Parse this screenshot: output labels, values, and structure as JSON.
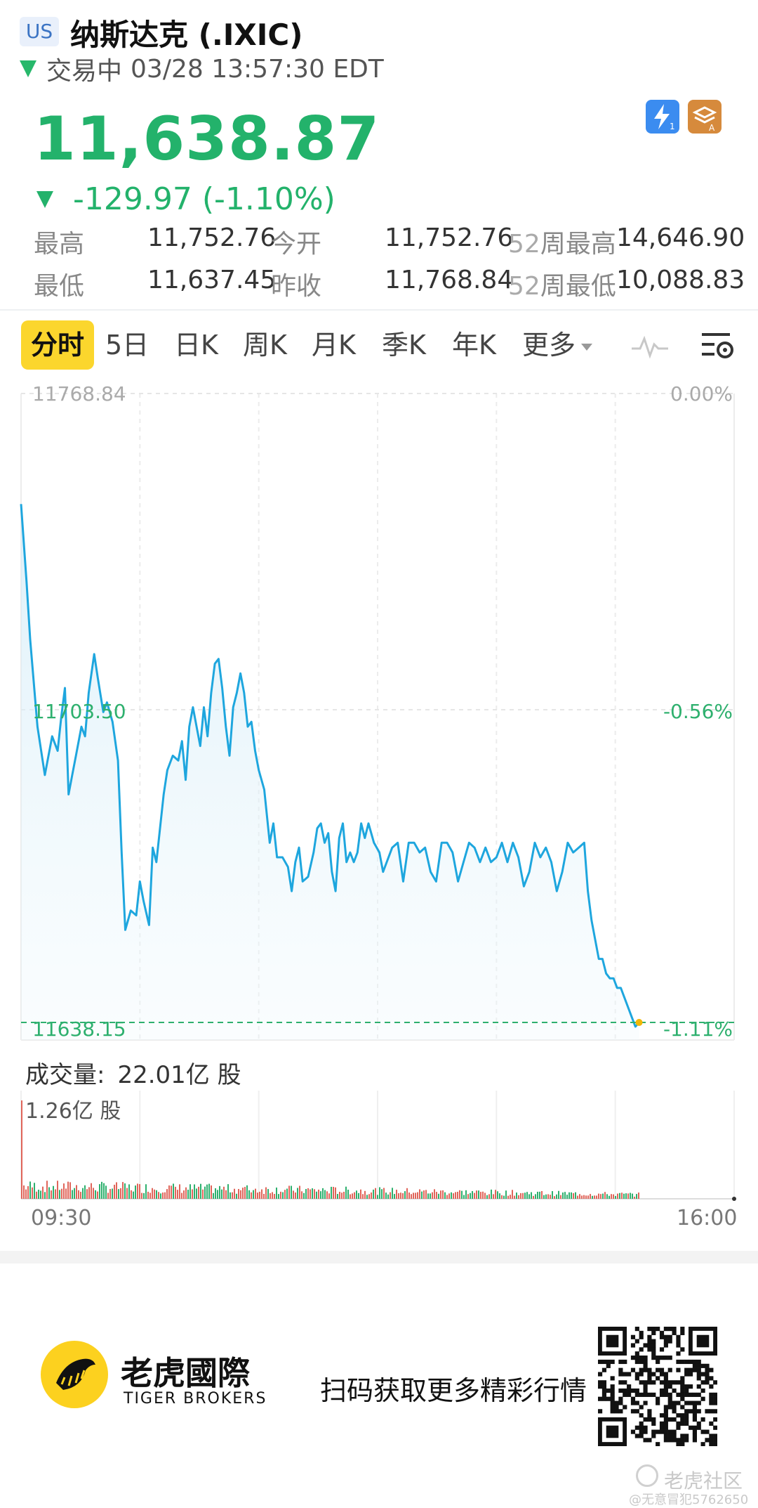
{
  "header": {
    "market_badge": "US",
    "title": "纳斯达克 (.IXIC)",
    "status": "交易中",
    "datetime": "03/28 13:57:30 EDT",
    "price": "11,638.87",
    "change": "-129.97",
    "change_pct": "(-1.10%)",
    "icons": [
      "lightning-level1-icon",
      "layers-a-icon"
    ],
    "colors": {
      "down": "#23b26b",
      "accent": "#fbd62d",
      "line": "#1ea6de"
    }
  },
  "stats": {
    "high_label": "最高",
    "high": "11,752.76",
    "open_label": "今开",
    "open": "11,752.76",
    "wk52_high_prefix": "52",
    "wk52_high_label": "周最高",
    "wk52_high": "14,646.90",
    "low_label": "最低",
    "low": "11,637.45",
    "prev_label": "昨收",
    "prev": "11,768.84",
    "wk52_low_prefix": "52",
    "wk52_low_label": "周最低",
    "wk52_low": "10,088.83"
  },
  "tabs": {
    "items": [
      "分时",
      "5日",
      "日K",
      "周K",
      "月K",
      "季K",
      "年K",
      "更多"
    ],
    "active": "分时",
    "icons": [
      "pulse-line-icon",
      "chart-settings-icon"
    ]
  },
  "chart_data": {
    "type": "line",
    "x_start": "09:30",
    "x_end": "16:00",
    "y_top_label": "11768.84",
    "y_mid_label": "11703.50",
    "y_bottom_label": "11638.15",
    "pct_top": "0.00%",
    "pct_mid": "-0.56%",
    "pct_bottom": "-1.11%",
    "ylim": [
      11638.15,
      11768.84
    ],
    "x_minutes_range": [
      0,
      390
    ],
    "grid": true,
    "series": [
      {
        "x": [
          0,
          3,
          5,
          9,
          13,
          17,
          20,
          22,
          24,
          26,
          28,
          30,
          33,
          35,
          37,
          40,
          42,
          45,
          47,
          50,
          53,
          55,
          57,
          60,
          63,
          65,
          67,
          70,
          72,
          74,
          76,
          78,
          80,
          83,
          86,
          88,
          90,
          92,
          94,
          96,
          98,
          100,
          102,
          104,
          106,
          108,
          110,
          112,
          114,
          116,
          118,
          120,
          122,
          124,
          126,
          128,
          130,
          133,
          136,
          138,
          140,
          143,
          146,
          148,
          150,
          152,
          154,
          157,
          160,
          162,
          164,
          166,
          168,
          170,
          172,
          174,
          176,
          178,
          180,
          182,
          184,
          186,
          188,
          190,
          193,
          196,
          198,
          200,
          203,
          206,
          209,
          212,
          215,
          218,
          221,
          224,
          227,
          230,
          233,
          236,
          239,
          242,
          245,
          248,
          251,
          254,
          257,
          260,
          263,
          266,
          269,
          272,
          275,
          278,
          281,
          284,
          287,
          290,
          293,
          296,
          299,
          302,
          305,
          308,
          310,
          312,
          314,
          316,
          318,
          320,
          322,
          324,
          326,
          328,
          330,
          332,
          334,
          336,
          338
        ],
        "y": [
          11746,
          11730,
          11718,
          11700,
          11690,
          11698,
          11695,
          11702,
          11708,
          11686,
          11690,
          11694,
          11700,
          11698,
          11707,
          11715,
          11710,
          11703,
          11705,
          11701,
          11693,
          11674,
          11658,
          11662,
          11661,
          11668,
          11664,
          11659,
          11675,
          11672,
          11679,
          11686,
          11691,
          11694,
          11693,
          11697,
          11689,
          11700,
          11704,
          11700,
          11696,
          11704,
          11698,
          11707,
          11713,
          11714,
          11708,
          11700,
          11694,
          11704,
          11707,
          11711,
          11707,
          11700,
          11701,
          11695,
          11691,
          11687,
          11676,
          11680,
          11673,
          11673,
          11671,
          11666,
          11672,
          11675,
          11668,
          11669,
          11674,
          11679,
          11680,
          11676,
          11678,
          11670,
          11666,
          11677,
          11680,
          11672,
          11674,
          11672,
          11674,
          11680,
          11677,
          11680,
          11676,
          11674,
          11670,
          11672,
          11675,
          11676,
          11668,
          11676,
          11676,
          11674,
          11675,
          11670,
          11668,
          11676,
          11676,
          11674,
          11668,
          11672,
          11676,
          11675,
          11672,
          11675,
          11672,
          11673,
          11676,
          11672,
          11676,
          11673,
          11667,
          11670,
          11676,
          11673,
          11675,
          11672,
          11666,
          11670,
          11676,
          11674,
          11675,
          11676,
          11666,
          11660,
          11656,
          11652,
          11652,
          11649,
          11648,
          11648,
          11646,
          11646,
          11644,
          11642,
          11640,
          11638,
          11638.87
        ]
      }
    ]
  },
  "volume": {
    "label": "成交量:",
    "value": "22.01亿 股",
    "max_label": "1.26亿 股"
  },
  "footer": {
    "brand_cn": "老虎國際",
    "brand_en": "TIGER BROKERS",
    "scan_text": "扫码获取更多精彩行情",
    "watermark": "老虎社区",
    "watermark_handle": "@无意冒犯5762650"
  }
}
